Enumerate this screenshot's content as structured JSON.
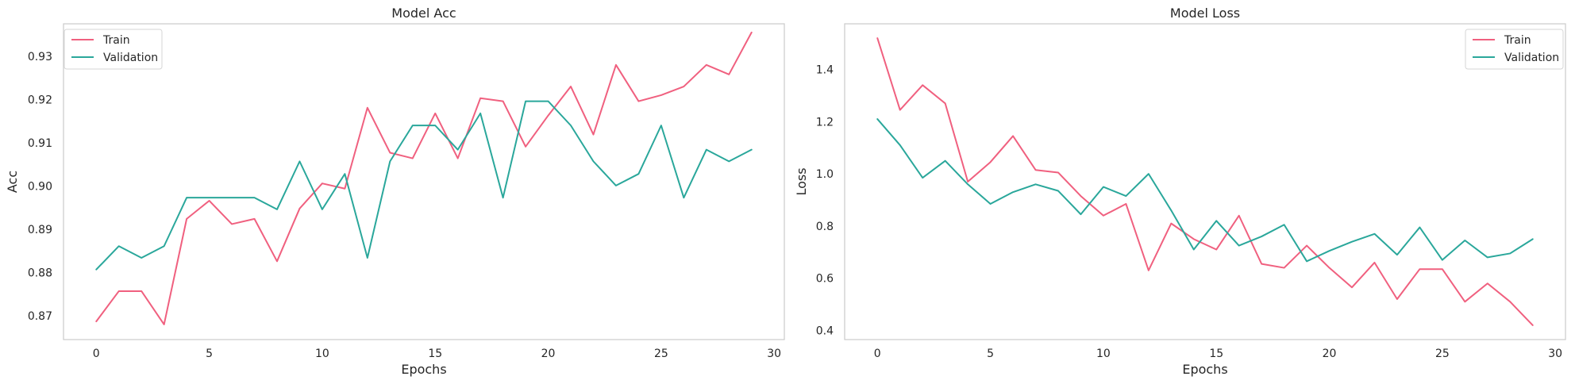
{
  "chart_data": [
    {
      "type": "line",
      "title": "Model Acc",
      "xlabel": "Epochs",
      "ylabel": "Acc",
      "xlim": [
        -1.45,
        30.45
      ],
      "ylim": [
        0.8645,
        0.9375
      ],
      "xticks": [
        0,
        5,
        10,
        15,
        20,
        25,
        30
      ],
      "yticks": [
        0.87,
        0.88,
        0.89,
        0.9,
        0.91,
        0.92,
        0.93
      ],
      "ytick_labels": [
        "0.87",
        "0.88",
        "0.89",
        "0.90",
        "0.91",
        "0.92",
        "0.93"
      ],
      "grid": false,
      "legend": "top-left",
      "x": [
        0,
        1,
        2,
        3,
        4,
        5,
        6,
        7,
        8,
        9,
        10,
        11,
        12,
        13,
        14,
        15,
        16,
        17,
        18,
        19,
        20,
        21,
        22,
        23,
        24,
        25,
        26,
        27,
        28,
        29
      ],
      "series": [
        {
          "name": "Train",
          "color": "#f0607f",
          "values": [
            0.8687,
            0.8757,
            0.8757,
            0.868,
            0.8924,
            0.8966,
            0.8912,
            0.8924,
            0.8826,
            0.8948,
            0.9006,
            0.8994,
            0.9181,
            0.9077,
            0.9064,
            0.9168,
            0.9064,
            0.9203,
            0.9196,
            0.9091,
            0.9163,
            0.923,
            0.9119,
            0.928,
            0.9196,
            0.921,
            0.923,
            0.928,
            0.9258,
            0.9355
          ]
        },
        {
          "name": "Validation",
          "color": "#2aa79b",
          "values": [
            0.8807,
            0.8861,
            0.8834,
            0.8861,
            0.8973,
            0.8973,
            0.8973,
            0.8973,
            0.8946,
            0.9057,
            0.8946,
            0.9028,
            0.8834,
            0.9057,
            0.914,
            0.914,
            0.9084,
            0.9168,
            0.8973,
            0.9196,
            0.9196,
            0.914,
            0.9057,
            0.9001,
            0.9028,
            0.914,
            0.8973,
            0.9084,
            0.9057,
            0.9084
          ]
        }
      ]
    },
    {
      "type": "line",
      "title": "Model Loss",
      "xlabel": "Epochs",
      "ylabel": "Loss",
      "xlim": [
        -1.45,
        30.45
      ],
      "ylim": [
        0.365,
        1.575
      ],
      "xticks": [
        0,
        5,
        10,
        15,
        20,
        25,
        30
      ],
      "yticks": [
        0.4,
        0.6,
        0.8,
        1.0,
        1.2,
        1.4
      ],
      "ytick_labels": [
        "0.4",
        "0.6",
        "0.8",
        "1.0",
        "1.2",
        "1.4"
      ],
      "grid": false,
      "legend": "top-right",
      "x": [
        0,
        1,
        2,
        3,
        4,
        5,
        6,
        7,
        8,
        9,
        10,
        11,
        12,
        13,
        14,
        15,
        16,
        17,
        18,
        19,
        20,
        21,
        22,
        23,
        24,
        25,
        26,
        27,
        28,
        29
      ],
      "series": [
        {
          "name": "Train",
          "color": "#f0607f",
          "values": [
            1.52,
            1.245,
            1.34,
            1.27,
            0.97,
            1.045,
            1.145,
            1.015,
            1.005,
            0.915,
            0.84,
            0.885,
            0.63,
            0.81,
            0.75,
            0.71,
            0.84,
            0.655,
            0.64,
            0.725,
            0.64,
            0.565,
            0.66,
            0.52,
            0.635,
            0.635,
            0.51,
            0.58,
            0.51,
            0.42
          ]
        },
        {
          "name": "Validation",
          "color": "#2aa79b",
          "values": [
            1.21,
            1.11,
            0.985,
            1.05,
            0.96,
            0.885,
            0.93,
            0.96,
            0.935,
            0.845,
            0.95,
            0.915,
            1.0,
            0.86,
            0.71,
            0.82,
            0.725,
            0.76,
            0.805,
            0.665,
            0.705,
            0.74,
            0.77,
            0.69,
            0.795,
            0.67,
            0.745,
            0.68,
            0.695,
            0.75
          ]
        }
      ]
    }
  ]
}
